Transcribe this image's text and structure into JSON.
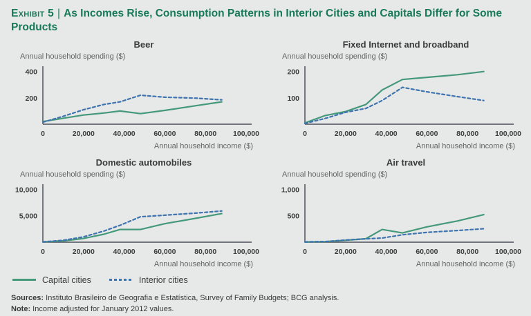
{
  "header": {
    "exhibit_label": "Exhibit 5",
    "separator": "|",
    "title": "As Incomes Rise, Consumption Patterns in Interior Cities and Capitals Differ for Some Products"
  },
  "colors": {
    "background": "#e7e8e8",
    "title_green": "#177a59",
    "axis": "#60646a",
    "tick_text": "#3c3c3c",
    "capital_line": "#44997a",
    "interior_line": "#3d73ae"
  },
  "legend": [
    {
      "label": "Capital cities",
      "style": "solid",
      "color": "#44997a"
    },
    {
      "label": "Interior cities",
      "style": "dashed",
      "color": "#3d73ae"
    }
  ],
  "chart_data": [
    {
      "type": "line",
      "title": "Beer",
      "ylabel": "Annual household spending ($)",
      "xlabel": "Annual household income ($)",
      "xlim": [
        0,
        100000
      ],
      "ylim": [
        0,
        430
      ],
      "xticks": [
        0,
        20000,
        40000,
        60000,
        80000,
        100000
      ],
      "yticks": [
        200,
        400
      ],
      "x": [
        0,
        10000,
        20000,
        30000,
        38000,
        48000,
        60000,
        75000,
        88000
      ],
      "series": [
        {
          "name": "Capital cities",
          "values": [
            20,
            45,
            70,
            85,
            100,
            80,
            105,
            140,
            170
          ]
        },
        {
          "name": "Interior cities",
          "values": [
            15,
            60,
            110,
            150,
            170,
            220,
            205,
            198,
            185
          ]
        }
      ]
    },
    {
      "type": "line",
      "title": "Fixed Internet and broadband",
      "ylabel": "Annual household spending ($)",
      "xlabel": "Annual household income ($)",
      "xlim": [
        0,
        100000
      ],
      "ylim": [
        0,
        215
      ],
      "xticks": [
        0,
        20000,
        40000,
        60000,
        80000,
        100000
      ],
      "yticks": [
        100,
        200
      ],
      "x": [
        0,
        10000,
        20000,
        30000,
        38000,
        48000,
        60000,
        75000,
        88000
      ],
      "series": [
        {
          "name": "Capital cities",
          "values": [
            5,
            33,
            48,
            75,
            130,
            170,
            178,
            188,
            200
          ]
        },
        {
          "name": "Interior cities",
          "values": [
            3,
            22,
            45,
            60,
            90,
            140,
            123,
            105,
            90
          ]
        }
      ]
    },
    {
      "type": "line",
      "title": "Domestic automobiles",
      "ylabel": "Annual household spending ($)",
      "xlabel": "Annual household income ($)",
      "xlim": [
        0,
        100000
      ],
      "ylim": [
        0,
        10700
      ],
      "xticks": [
        0,
        20000,
        40000,
        60000,
        80000,
        100000
      ],
      "yticks": [
        5000,
        10000
      ],
      "x": [
        0,
        10000,
        20000,
        30000,
        38000,
        48000,
        60000,
        75000,
        88000
      ],
      "series": [
        {
          "name": "Capital cities",
          "values": [
            50,
            250,
            700,
            1500,
            2400,
            2400,
            3500,
            4500,
            5400
          ]
        },
        {
          "name": "Interior cities",
          "values": [
            50,
            350,
            1000,
            2100,
            3200,
            4800,
            5100,
            5500,
            5900
          ]
        }
      ]
    },
    {
      "type": "line",
      "title": "Air travel",
      "ylabel": "Annual household spending ($)",
      "xlabel": "Annual household income ($)",
      "xlim": [
        0,
        100000
      ],
      "ylim": [
        0,
        1070
      ],
      "xticks": [
        0,
        20000,
        40000,
        60000,
        80000,
        100000
      ],
      "yticks": [
        500,
        1000
      ],
      "x": [
        0,
        10000,
        20000,
        30000,
        38000,
        48000,
        60000,
        75000,
        88000
      ],
      "series": [
        {
          "name": "Capital cities",
          "values": [
            5,
            10,
            35,
            65,
            240,
            175,
            290,
            400,
            520
          ]
        },
        {
          "name": "Interior cities",
          "values": [
            5,
            12,
            40,
            62,
            78,
            140,
            185,
            220,
            255
          ]
        }
      ]
    }
  ],
  "footer": {
    "sources_label": "Sources:",
    "sources_text": "Instituto Brasileiro de Geografia e Estatística, Survey of Family Budgets; BCG analysis.",
    "note_label": "Note:",
    "note_text": "Income adjusted for January 2012 values."
  }
}
